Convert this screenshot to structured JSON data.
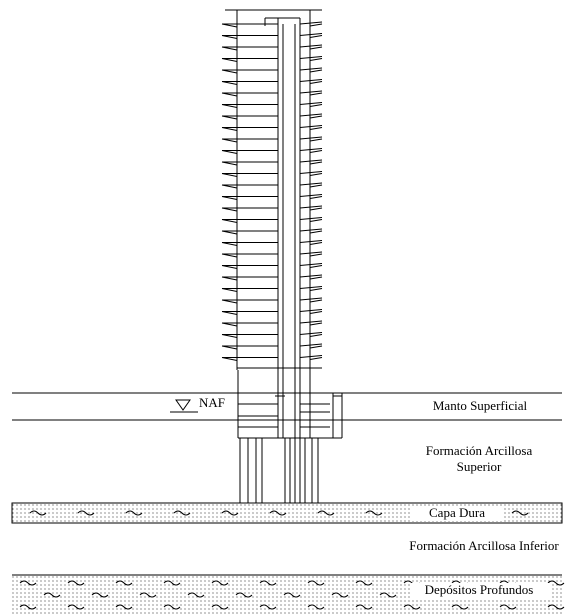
{
  "water_table": {
    "label": "NAF"
  },
  "layers": [
    {
      "name": "Manto Superficial"
    },
    {
      "name": [
        "Formación Arcillosa",
        "Superior"
      ]
    },
    {
      "name": "Capa Dura"
    },
    {
      "name": "Formación Arcillosa Inferior"
    },
    {
      "name": "Depósitos Profundos"
    }
  ]
}
